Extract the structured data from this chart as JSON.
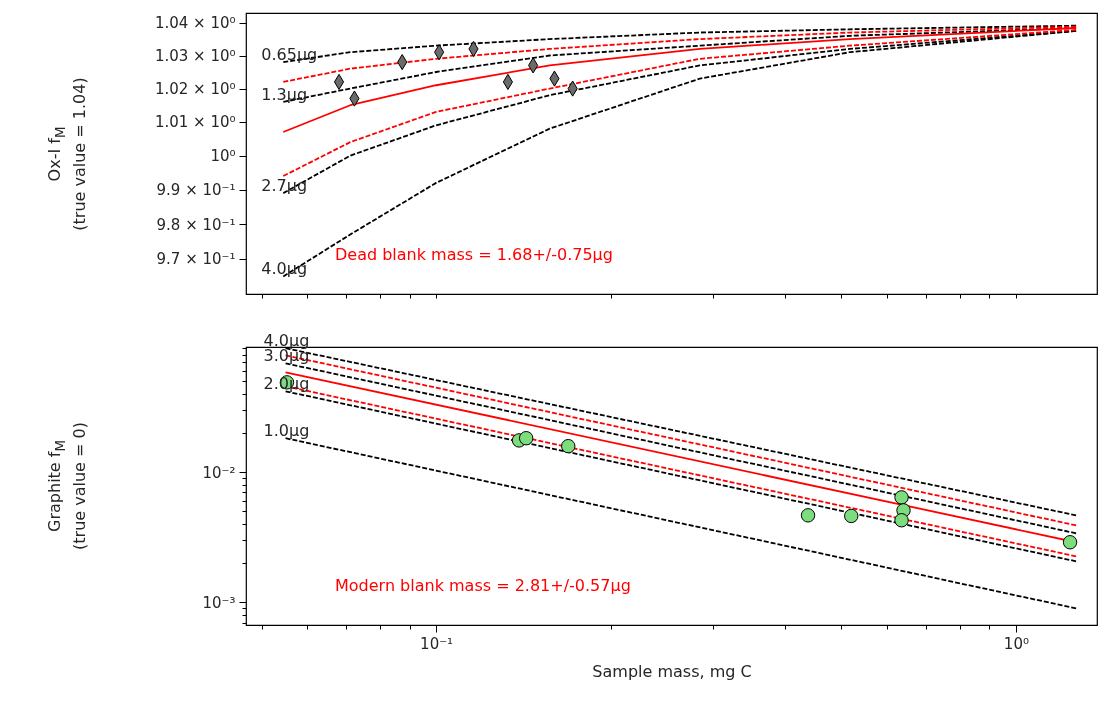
{
  "chart_data": [
    {
      "type": "line",
      "ylabel": "Ox-I f$_{M}$\n(true value = 1.04)",
      "log": "xy",
      "grid": false,
      "tick_labels": "y",
      "xlim": [
        0.047,
        1.38
      ],
      "xticks": [
        {
          "value": 0.05,
          "label": null
        },
        {
          "value": 0.06,
          "label": null
        },
        {
          "value": 0.07,
          "label": null
        },
        {
          "value": 0.08,
          "label": null
        },
        {
          "value": 0.09,
          "label": null
        },
        {
          "value": 0.1,
          "label": null
        },
        {
          "value": 0.2,
          "label": null
        },
        {
          "value": 0.3,
          "label": null
        },
        {
          "value": 0.4,
          "label": null
        },
        {
          "value": 0.5,
          "label": null
        },
        {
          "value": 0.6,
          "label": null
        },
        {
          "value": 0.7,
          "label": null
        },
        {
          "value": 0.8,
          "label": null
        },
        {
          "value": 0.9,
          "label": null
        },
        {
          "value": 1,
          "label": null
        }
      ],
      "ylim": [
        0.96,
        1.043
      ],
      "yticks": [
        {
          "value": 0.97,
          "label": "9.7 × 10⁻¹"
        },
        {
          "value": 0.98,
          "label": "9.8 × 10⁻¹"
        },
        {
          "value": 0.99,
          "label": "9.9 × 10⁻¹"
        },
        {
          "value": 1,
          "label": "10⁰"
        },
        {
          "value": 1.01,
          "label": "1.01 × 10⁰"
        },
        {
          "value": 1.02,
          "label": "1.02 × 10⁰"
        },
        {
          "value": 1.03,
          "label": "1.03 × 10⁰"
        },
        {
          "value": 1.04,
          "label": "1.04 × 10⁰"
        }
      ],
      "series": [
        {
          "name": "0.65µg",
          "color": "#000000",
          "line_style": "dashed",
          "x": [
            0.0545,
            0.0711,
            0.1,
            0.157,
            0.285,
            0.517,
            1.27
          ],
          "values": [
            1.028,
            1.031,
            1.033,
            1.035,
            1.037,
            1.038,
            1.0391
          ]
        },
        {
          "name": "1.3µg",
          "color": "#000000",
          "line_style": "dashed",
          "x": [
            0.0545,
            0.0711,
            0.1,
            0.157,
            0.285,
            0.517,
            1.27
          ],
          "values": [
            1.016,
            1.02,
            1.025,
            1.03,
            1.033,
            1.036,
            1.0384
          ]
        },
        {
          "name": "2.7µg",
          "color": "#000000",
          "line_style": "dashed",
          "x": [
            0.0545,
            0.0711,
            0.1,
            0.157,
            0.285,
            0.517,
            1.27
          ],
          "values": [
            0.989,
            1.0,
            1.009,
            1.018,
            1.027,
            1.032,
            1.0375
          ]
        },
        {
          "name": "4.0µg",
          "color": "#000000",
          "line_style": "dashed",
          "x": [
            0.0545,
            0.0711,
            0.1,
            0.157,
            0.285,
            0.517,
            1.27
          ],
          "values": [
            0.965,
            0.977,
            0.992,
            1.008,
            1.023,
            1.031,
            1.0375
          ]
        },
        {
          "color": "#ff0000",
          "line_style": "dashed",
          "x": [
            0.0545,
            0.0711,
            0.1,
            0.157,
            0.285,
            0.517,
            1.27
          ],
          "values": [
            1.022,
            1.026,
            1.029,
            1.032,
            1.035,
            1.037,
            1.0388
          ]
        },
        {
          "color": "#ff0000",
          "line_style": "solid",
          "x": [
            0.0545,
            0.0711,
            0.1,
            0.157,
            0.285,
            0.517,
            1.27
          ],
          "values": [
            1.007,
            1.015,
            1.021,
            1.027,
            1.032,
            1.035,
            1.0384
          ]
        },
        {
          "color": "#ff0000",
          "line_style": "dashed",
          "x": [
            0.0545,
            0.0711,
            0.1,
            0.157,
            0.285,
            0.517,
            1.27
          ],
          "values": [
            0.994,
            1.004,
            1.013,
            1.02,
            1.029,
            1.033,
            1.0378
          ]
        },
        {
          "type": "scatter",
          "color": "#6b6b6b",
          "marker": "diamond",
          "x": [
            0.068,
            0.0723,
            0.0874,
            0.1012,
            0.116,
            0.133,
            0.147,
            0.16,
            0.172
          ],
          "values": [
            1.022,
            1.017,
            1.028,
            1.031,
            1.032,
            1.022,
            1.027,
            1.023,
            1.02
          ]
        }
      ],
      "annotations": [
        "Dead blank mass = 1.68+/-0.75µg"
      ]
    },
    {
      "type": "line",
      "xlabel": "Sample mass, mg C",
      "ylabel": "Graphite f$_{M}$\n(true value = 0)",
      "log": "xy",
      "grid": false,
      "xlim": [
        0.047,
        1.38
      ],
      "xticks": [
        {
          "value": 0.05,
          "label": null
        },
        {
          "value": 0.06,
          "label": null
        },
        {
          "value": 0.07,
          "label": null
        },
        {
          "value": 0.08,
          "label": null
        },
        {
          "value": 0.09,
          "label": null
        },
        {
          "value": 0.1,
          "label": "10⁻¹"
        },
        {
          "value": 0.2,
          "label": null
        },
        {
          "value": 0.3,
          "label": null
        },
        {
          "value": 0.4,
          "label": null
        },
        {
          "value": 0.5,
          "label": null
        },
        {
          "value": 0.6,
          "label": null
        },
        {
          "value": 0.7,
          "label": null
        },
        {
          "value": 0.8,
          "label": null
        },
        {
          "value": 0.9,
          "label": null
        },
        {
          "value": 1,
          "label": "10⁰"
        }
      ],
      "ylim": [
        0.00067,
        0.092
      ],
      "yticks": [
        {
          "value": 0.0007,
          "label": null
        },
        {
          "value": 0.0008,
          "label": null
        },
        {
          "value": 0.0009,
          "label": null
        },
        {
          "value": 0.001,
          "label": "10⁻³"
        },
        {
          "value": 0.002,
          "label": null
        },
        {
          "value": 0.003,
          "label": null
        },
        {
          "value": 0.004,
          "label": null
        },
        {
          "value": 0.005,
          "label": null
        },
        {
          "value": 0.006,
          "label": null
        },
        {
          "value": 0.007,
          "label": null
        },
        {
          "value": 0.008,
          "label": null
        },
        {
          "value": 0.009,
          "label": null
        },
        {
          "value": 0.01,
          "label": "10⁻²"
        },
        {
          "value": 0.02,
          "label": null
        },
        {
          "value": 0.03,
          "label": null
        },
        {
          "value": 0.04,
          "label": null
        },
        {
          "value": 0.05,
          "label": null
        },
        {
          "value": 0.06,
          "label": null
        },
        {
          "value": 0.07,
          "label": null
        },
        {
          "value": 0.08,
          "label": null
        },
        {
          "value": 0.09,
          "label": null
        }
      ],
      "series": [
        {
          "name": "4.0µg",
          "color": "#000000",
          "line_style": "dashed",
          "x": [
            0.055,
            1.27
          ],
          "values": [
            0.09,
            0.00467
          ]
        },
        {
          "color": "#ff0000",
          "line_style": "dashed",
          "x": [
            0.055,
            1.27
          ],
          "values": [
            0.0794,
            0.00391
          ]
        },
        {
          "name": "3.0µg",
          "color": "#000000",
          "line_style": "dashed",
          "x": [
            0.055,
            1.27
          ],
          "values": [
            0.0689,
            0.0034
          ]
        },
        {
          "color": "#ff0000",
          "line_style": "solid",
          "x": [
            0.055,
            1.27
          ],
          "values": [
            0.0588,
            0.0029
          ]
        },
        {
          "color": "#ff0000",
          "line_style": "dashed",
          "x": [
            0.055,
            1.27
          ],
          "values": [
            0.0459,
            0.00226
          ]
        },
        {
          "name": "2.0µg",
          "color": "#000000",
          "line_style": "dashed",
          "x": [
            0.055,
            1.27
          ],
          "values": [
            0.042,
            0.00207
          ]
        },
        {
          "name": "1.0µg",
          "color": "#000000",
          "line_style": "dashed",
          "x": [
            0.055,
            1.27
          ],
          "values": [
            0.0183,
            0.0009
          ]
        },
        {
          "type": "scatter",
          "color": "#7ddc7d",
          "marker": "circle",
          "x": [
            0.0553,
            0.139,
            0.143,
            0.169,
            0.438,
            0.52,
            0.635,
            0.64,
            0.635,
            1.24
          ],
          "values": [
            0.0492,
            0.0176,
            0.0183,
            0.0159,
            0.00467,
            0.00462,
            0.00642,
            0.0051,
            0.00428,
            0.0029
          ]
        }
      ],
      "annotations": [
        "Modern blank mass = 2.81+/-0.57µg"
      ]
    }
  ]
}
